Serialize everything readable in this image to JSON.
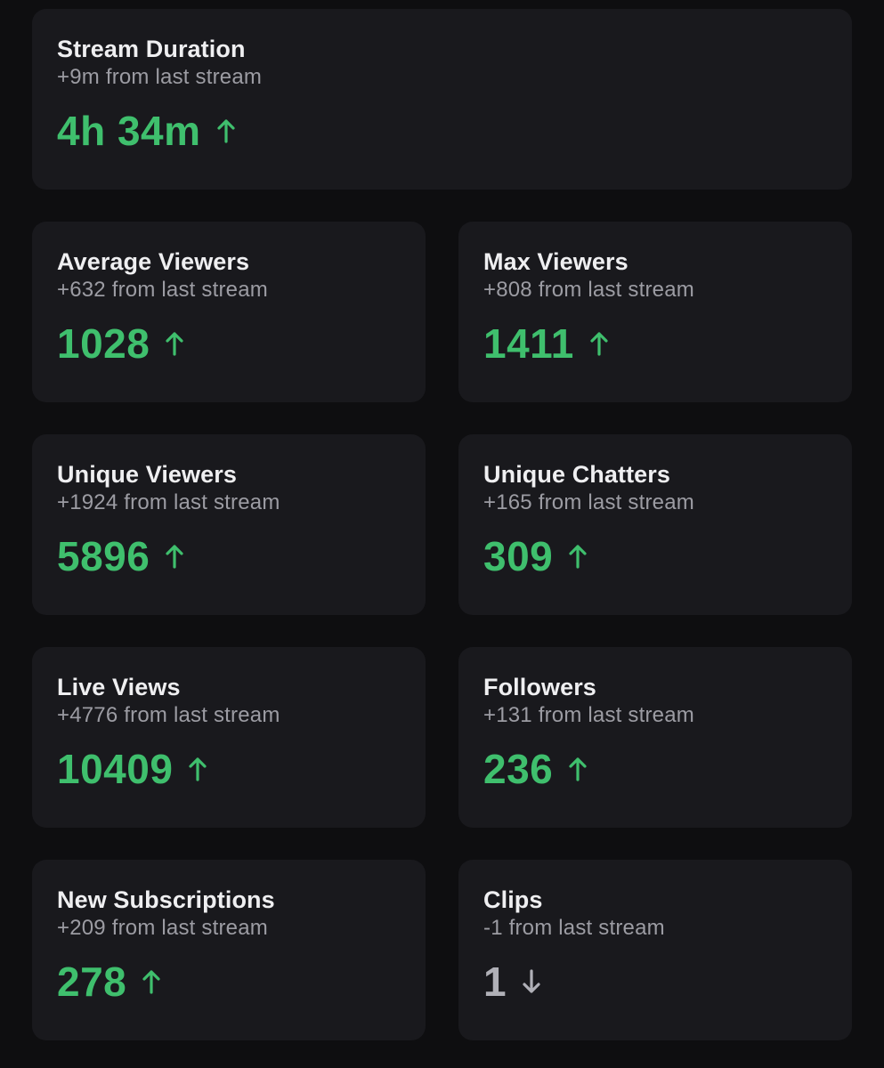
{
  "colors": {
    "background": "#0e0e10",
    "card": "#19191d",
    "up": "#3fbf6d",
    "down": "#b0b0b7",
    "title": "#efeff1",
    "subtitle": "#9c9ca3"
  },
  "stats": [
    {
      "title": "Stream Duration",
      "change": "+9m from last stream",
      "value": "4h 34m",
      "trend": "up",
      "icon": "arrow-up-icon"
    },
    {
      "title": "Average Viewers",
      "change": "+632 from last stream",
      "value": "1028",
      "trend": "up",
      "icon": "arrow-up-icon"
    },
    {
      "title": "Max Viewers",
      "change": "+808 from last stream",
      "value": "1411",
      "trend": "up",
      "icon": "arrow-up-icon"
    },
    {
      "title": "Unique Viewers",
      "change": "+1924 from last stream",
      "value": "5896",
      "trend": "up",
      "icon": "arrow-up-icon"
    },
    {
      "title": "Unique Chatters",
      "change": "+165 from last stream",
      "value": "309",
      "trend": "up",
      "icon": "arrow-up-icon"
    },
    {
      "title": "Live Views",
      "change": "+4776 from last stream",
      "value": "10409",
      "trend": "up",
      "icon": "arrow-up-icon"
    },
    {
      "title": "Followers",
      "change": "+131 from last stream",
      "value": "236",
      "trend": "up",
      "icon": "arrow-up-icon"
    },
    {
      "title": "New Subscriptions",
      "change": "+209 from last stream",
      "value": "278",
      "trend": "up",
      "icon": "arrow-up-icon"
    },
    {
      "title": "Clips",
      "change": "-1 from last stream",
      "value": "1",
      "trend": "down",
      "icon": "arrow-down-icon"
    }
  ]
}
